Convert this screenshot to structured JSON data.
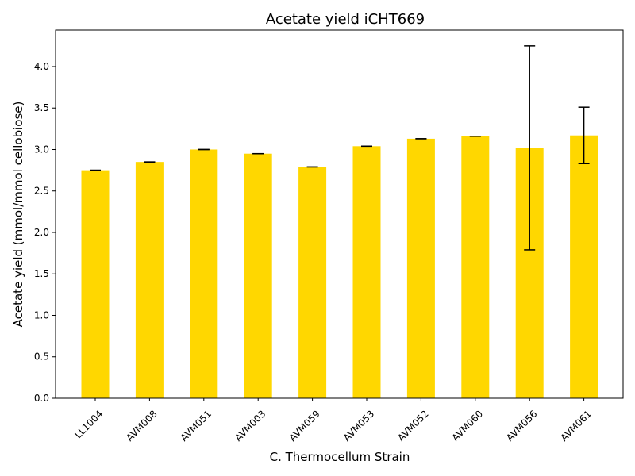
{
  "chart_data": {
    "type": "bar",
    "title": "Acetate yield iCHT669",
    "xlabel": "C. Thermocellum Strain",
    "ylabel": "Acetate yield (mmol/mmol cellobiose)",
    "categories": [
      "LL1004",
      "AVM008",
      "AVM051",
      "AVM003",
      "AVM059",
      "AVM053",
      "AVM052",
      "AVM060",
      "AVM056",
      "AVM061"
    ],
    "values": [
      2.75,
      2.85,
      3.0,
      2.95,
      2.79,
      3.04,
      3.13,
      3.16,
      3.02,
      3.17
    ],
    "errors": [
      0.0,
      0.0,
      0.0,
      0.0,
      0.0,
      0.0,
      0.0,
      0.0,
      1.23,
      0.34
    ],
    "ylim": [
      0,
      4.44
    ],
    "yticks": [
      "0.0",
      "0.5",
      "1.0",
      "1.5",
      "2.0",
      "2.5",
      "3.0",
      "3.5",
      "4.0"
    ],
    "grid": false,
    "bar_color": "#FFD700",
    "error_color": "#000000"
  }
}
